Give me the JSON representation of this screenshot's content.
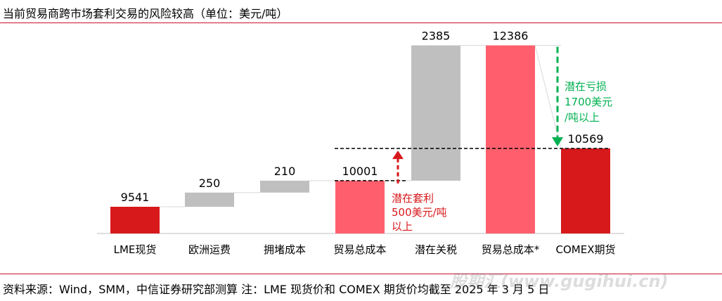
{
  "header": {
    "title": "当前贸易商跨市场套利交易的风险较高（单位：美元/吨）"
  },
  "footer": {
    "source": "资料来源：Wind，SMM，中信证券研究部测算    注：LME 现货价和 COMEX 期货价均截至 2025 年 3 月 5 日",
    "watermark": "股期汇(www.gugihui.cn)"
  },
  "colors": {
    "red": "#d7191c",
    "pink": "#ff5f6d",
    "gray": "#bfbfbf",
    "green": "#00b050",
    "rule": "#c8102e"
  },
  "chart_data": {
    "type": "bar",
    "subtype": "waterfall",
    "categories": [
      "LME现货",
      "欧洲运费",
      "拥堵成本",
      "贸易总成本",
      "潜在关税",
      "贸易总成本*",
      "COMEX期货"
    ],
    "bars": [
      {
        "category": "LME现货",
        "kind": "total",
        "start": 0,
        "end": 9541,
        "label": "9541",
        "color": "red"
      },
      {
        "category": "欧洲运费",
        "kind": "increment",
        "start": 9541,
        "end": 9791,
        "label": "250",
        "color": "gray"
      },
      {
        "category": "拥堵成本",
        "kind": "increment",
        "start": 9791,
        "end": 10001,
        "label": "210",
        "color": "gray"
      },
      {
        "category": "贸易总成本",
        "kind": "total",
        "start": 0,
        "end": 10001,
        "label": "10001",
        "color": "pink"
      },
      {
        "category": "潜在关税",
        "kind": "increment",
        "start": 10001,
        "end": 12386,
        "label": "2385",
        "color": "gray"
      },
      {
        "category": "贸易总成本*",
        "kind": "total",
        "start": 0,
        "end": 12386,
        "label": "12386",
        "color": "pink"
      },
      {
        "category": "COMEX期货",
        "kind": "total",
        "start": 0,
        "end": 10569,
        "label": "10569",
        "color": "red"
      }
    ],
    "annotations": [
      {
        "text_lines": [
          "潜在套利",
          "500美元/吨",
          "以上"
        ],
        "color": "red",
        "arrow": "up",
        "from": 10001,
        "to": 10569
      },
      {
        "text_lines": [
          "潜在亏损",
          "1700美元",
          "/吨以上"
        ],
        "color": "green",
        "arrow": "down",
        "from": 12386,
        "to": 10569
      }
    ],
    "reference_lines": [
      10001,
      10569
    ],
    "grid": false,
    "legend": "none"
  }
}
